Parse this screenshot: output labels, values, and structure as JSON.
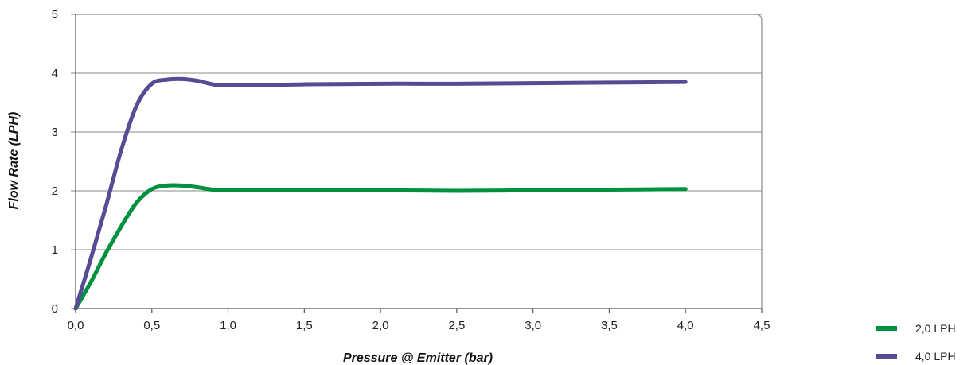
{
  "chart_data": {
    "type": "line",
    "xlabel": "Pressure @ Emitter (bar)",
    "ylabel": "Flow Rate (LPH)",
    "xlim": [
      0,
      4.5
    ],
    "ylim": [
      0,
      5
    ],
    "x_ticks": [
      "0,0",
      "0,5",
      "1,0",
      "1,5",
      "2,0",
      "2,5",
      "3,0",
      "3,5",
      "4,0",
      "4,5"
    ],
    "y_ticks": [
      "0",
      "1",
      "2",
      "3",
      "4",
      "5"
    ],
    "grid": "horizontal",
    "legend_position": "bottom-right",
    "series": [
      {
        "name": "2,0 LPH",
        "color": "#00913f",
        "x": [
          0.0,
          0.1,
          0.2,
          0.3,
          0.4,
          0.5,
          0.6,
          0.7,
          0.8,
          0.9,
          1.0,
          1.5,
          2.0,
          2.5,
          3.0,
          3.5,
          4.0
        ],
        "y": [
          0.0,
          0.45,
          0.95,
          1.4,
          1.8,
          2.03,
          2.09,
          2.09,
          2.06,
          2.02,
          2.01,
          2.02,
          2.01,
          2.0,
          2.01,
          2.02,
          2.03
        ]
      },
      {
        "name": "4,0 LPH",
        "color": "#564c95",
        "x": [
          0.0,
          0.1,
          0.2,
          0.3,
          0.4,
          0.5,
          0.6,
          0.7,
          0.8,
          0.9,
          1.0,
          1.5,
          2.0,
          2.5,
          3.0,
          3.5,
          4.0
        ],
        "y": [
          0.0,
          0.85,
          1.75,
          2.7,
          3.45,
          3.82,
          3.89,
          3.9,
          3.87,
          3.81,
          3.79,
          3.81,
          3.82,
          3.82,
          3.83,
          3.84,
          3.85
        ]
      }
    ]
  }
}
